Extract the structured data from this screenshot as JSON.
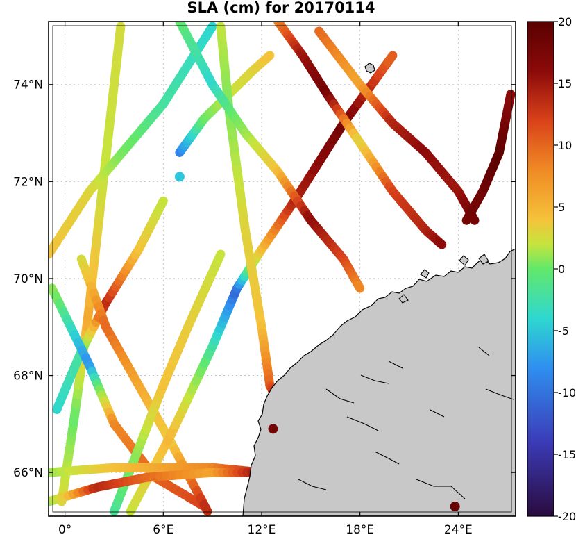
{
  "chart_data": {
    "type": "scatter",
    "title": "SLA (cm) for 20170114",
    "variable": "SLA",
    "unit": "cm",
    "date": "20170114",
    "xlabel": "",
    "ylabel": "",
    "lon_range": [
      -1,
      27.5
    ],
    "lat_range": [
      65.1,
      75.3
    ],
    "x_ticks": [
      0,
      6,
      12,
      18,
      24
    ],
    "x_tick_labels": [
      "0°",
      "6°E",
      "12°E",
      "18°E",
      "24°E"
    ],
    "y_ticks": [
      66,
      68,
      70,
      72,
      74
    ],
    "y_tick_labels": [
      "66°N",
      "68°N",
      "70°N",
      "72°N",
      "74°N"
    ],
    "grid": true,
    "colormap": "jet-like",
    "colorbar": {
      "min": -20,
      "max": 20,
      "ticks": [
        20,
        15,
        10,
        5,
        0,
        -5,
        -10,
        -15,
        -20
      ],
      "tick_labels": [
        "20",
        "15",
        "10",
        "5",
        "0",
        "-5",
        "-10",
        "-15",
        "-20"
      ],
      "colors": [
        "#2a0b3d",
        "#3b3bb8",
        "#2f8ff0",
        "#2ed8d0",
        "#62e86a",
        "#c6e43c",
        "#f5c23a",
        "#f08a24",
        "#d9421a",
        "#8c0a0a",
        "#5a0000"
      ]
    },
    "land_color": "#c8c8c8",
    "tracks": [
      {
        "lon": [
          -0.2,
          0.6,
          1.4,
          2.4,
          3.4
        ],
        "lat": [
          65.4,
          67.2,
          69.2,
          72.2,
          75.2
        ],
        "sla": [
          2,
          -4,
          6,
          0,
          1
        ]
      },
      {
        "lon": [
          -1.0,
          1.5,
          3.5,
          6.0,
          9.0
        ],
        "lat": [
          70.5,
          71.8,
          72.6,
          73.6,
          75.2
        ],
        "sla": [
          4,
          2,
          -3,
          -6,
          -8
        ]
      },
      {
        "lon": [
          -0.5,
          1.0,
          2.5,
          4.5,
          6.0
        ],
        "lat": [
          67.3,
          68.5,
          69.5,
          70.6,
          71.6
        ],
        "sla": [
          -8,
          -6,
          14,
          4,
          0
        ]
      },
      {
        "lon": [
          -0.8,
          1.5,
          3.0,
          5.5,
          8.5
        ],
        "lat": [
          69.8,
          68.2,
          67.0,
          65.9,
          65.3
        ],
        "sla": [
          -2,
          -12,
          8,
          10,
          12
        ]
      },
      {
        "lon": [
          1.0,
          2.5,
          4.5,
          6.5,
          8.7
        ],
        "lat": [
          70.4,
          69.0,
          67.8,
          66.6,
          65.2
        ],
        "sla": [
          1,
          10,
          6,
          3,
          14
        ]
      },
      {
        "lon": [
          3.0,
          4.5,
          6.0,
          7.5,
          9.5
        ],
        "lat": [
          65.2,
          66.5,
          67.8,
          69.0,
          70.5
        ],
        "sla": [
          -6,
          -2,
          4,
          3,
          0
        ]
      },
      {
        "lon": [
          4.0,
          6.5,
          9.0,
          10.5,
          12.0,
          14.0,
          17.0,
          20.0
        ],
        "lat": [
          65.2,
          66.8,
          68.6,
          69.8,
          70.6,
          71.6,
          73.2,
          74.6
        ],
        "sla": [
          0,
          5,
          -6,
          -14,
          4,
          14,
          18,
          10
        ]
      },
      {
        "lon": [
          7.0,
          8.5,
          10.0,
          11.5,
          12.5
        ],
        "lat": [
          72.6,
          73.3,
          73.8,
          74.3,
          74.6
        ],
        "sla": [
          -13,
          -4,
          0,
          2,
          4
        ]
      },
      {
        "lon": [
          7.0
        ],
        "lat": [
          72.1
        ],
        "sla": [
          -9
        ]
      },
      {
        "lon": [
          9.5,
          10.0,
          11.0,
          12.0,
          12.5,
          12.8
        ],
        "lat": [
          75.2,
          73.5,
          71.0,
          69.0,
          67.8,
          67.6
        ],
        "sla": [
          0,
          -3,
          2,
          4,
          10,
          14
        ]
      },
      {
        "lon": [
          7.0,
          9.0,
          11.0,
          13.0,
          15.0,
          17.0,
          18.0
        ],
        "lat": [
          75.3,
          74.0,
          73.0,
          72.2,
          71.2,
          70.4,
          69.8
        ],
        "sla": [
          -4,
          -8,
          -2,
          4,
          16,
          12,
          8
        ]
      },
      {
        "lon": [
          13.0,
          14.5,
          16.0,
          18.0,
          20.0,
          22.0,
          23.0
        ],
        "lat": [
          75.3,
          74.6,
          73.8,
          72.8,
          71.8,
          71.0,
          70.7
        ],
        "sla": [
          8,
          15,
          18,
          2,
          12,
          14,
          16
        ]
      },
      {
        "lon": [
          15.5,
          18.0,
          20.0,
          22.0,
          24.0,
          25.0
        ],
        "lat": [
          75.1,
          74.0,
          73.2,
          72.6,
          71.8,
          71.2
        ],
        "sla": [
          10,
          6,
          14,
          16,
          15,
          18
        ]
      },
      {
        "lon": [
          24.5,
          25.5,
          26.5,
          27.2
        ],
        "lat": [
          71.2,
          71.8,
          72.6,
          73.8
        ],
        "sla": [
          18,
          18,
          20,
          16
        ]
      },
      {
        "lon": [
          -1.0,
          3.0,
          6.0,
          9.0,
          12.0
        ],
        "lat": [
          66.0,
          66.1,
          66.1,
          66.1,
          66.0
        ],
        "sla": [
          -2,
          4,
          6,
          8,
          14
        ]
      },
      {
        "lon": [
          -1.0,
          2.0,
          5.0,
          9.0,
          12.0
        ],
        "lat": [
          65.4,
          65.7,
          65.9,
          66.0,
          66.0
        ],
        "sla": [
          -3,
          14,
          10,
          6,
          16
        ]
      },
      {
        "lon": [
          12.7
        ],
        "lat": [
          66.9
        ],
        "sla": [
          18
        ]
      },
      {
        "lon": [
          23.8
        ],
        "lat": [
          65.3
        ],
        "sla": [
          19
        ]
      }
    ]
  }
}
